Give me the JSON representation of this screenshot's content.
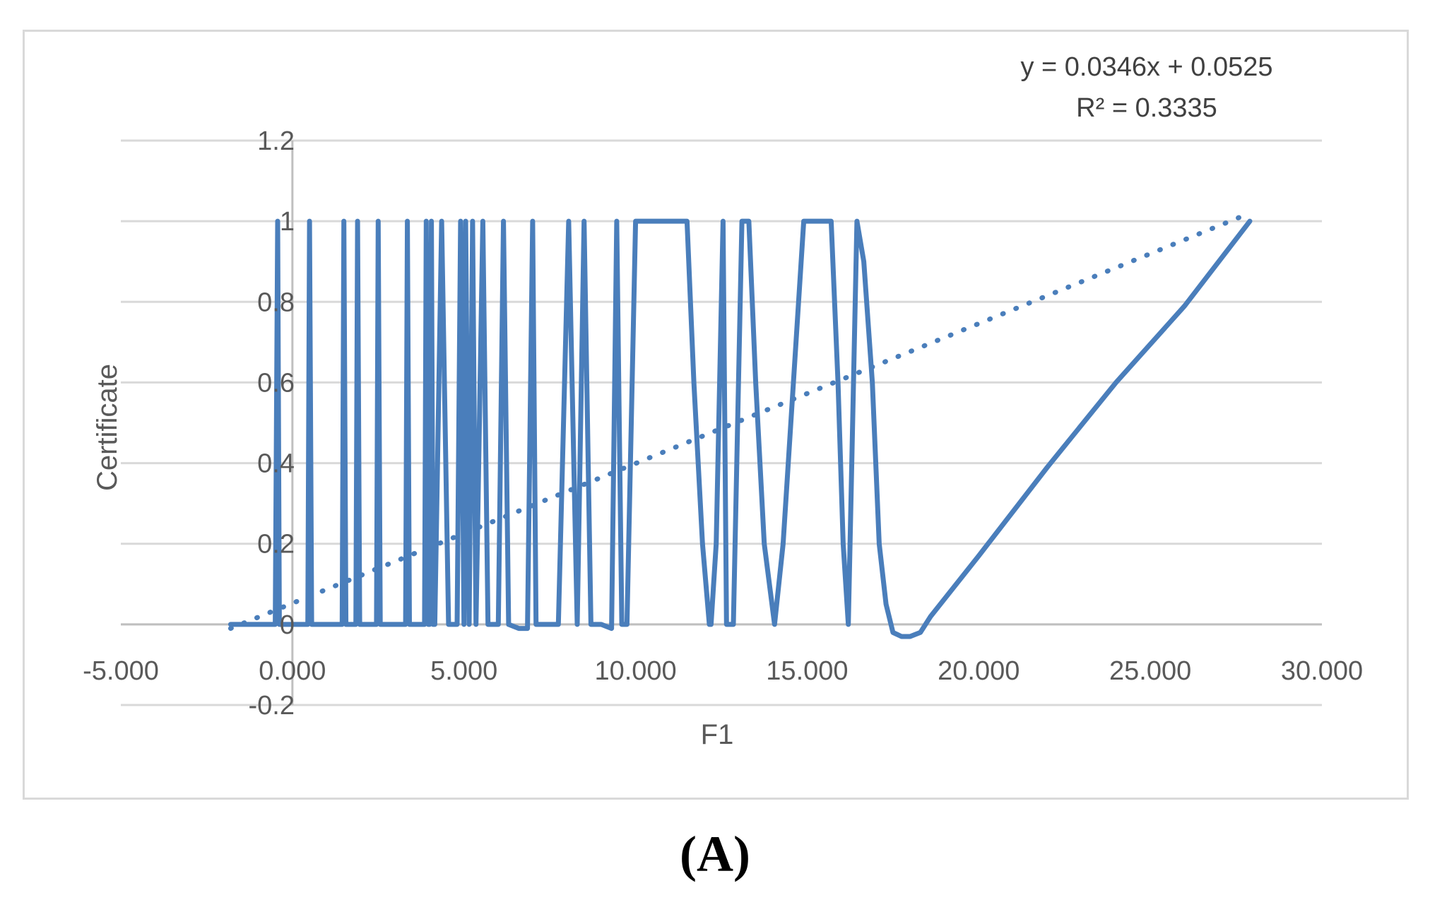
{
  "chart_data": {
    "type": "line",
    "title": "",
    "xlabel": "F1",
    "ylabel": "Certificate",
    "xlim": [
      -5000,
      30000
    ],
    "ylim": [
      -0.2,
      1.2
    ],
    "x_ticks": [
      "-5.000",
      "0.000",
      "5.000",
      "10.000",
      "15.000",
      "20.000",
      "25.000",
      "30.000"
    ],
    "y_ticks": [
      "-0.2",
      "0",
      "0.2",
      "0.4",
      "0.6",
      "0.8",
      "1",
      "1.2"
    ],
    "grid": true,
    "legend": "none",
    "colors": {
      "series": "#4a7ebb",
      "grid": "#d9d9d9",
      "axis": "#bfbfbf",
      "text": "#595959"
    },
    "trendline": {
      "type": "linear",
      "style": "dotted",
      "equation": "y = 0.0346x + 0.0525",
      "r_squared": "R² = 0.3335",
      "x": [
        -1800,
        27900
      ],
      "y": [
        -0.01,
        1.02
      ]
    },
    "series": [
      {
        "points": [
          [
            -1800,
            0
          ],
          [
            -500,
            0
          ],
          [
            -430,
            1.0
          ],
          [
            -380,
            0
          ],
          [
            450,
            0
          ],
          [
            500,
            1.0
          ],
          [
            560,
            0
          ],
          [
            1450,
            0
          ],
          [
            1500,
            1.0
          ],
          [
            1560,
            0
          ],
          [
            1850,
            0
          ],
          [
            1900,
            1.0
          ],
          [
            1960,
            0
          ],
          [
            2450,
            0
          ],
          [
            2500,
            1.0
          ],
          [
            2560,
            0
          ],
          [
            3300,
            0
          ],
          [
            3350,
            1.0
          ],
          [
            3410,
            0
          ],
          [
            3850,
            0
          ],
          [
            3900,
            1.0
          ],
          [
            3960,
            0
          ],
          [
            4000,
            0
          ],
          [
            4050,
            1.0
          ],
          [
            4100,
            0
          ],
          [
            4150,
            0
          ],
          [
            4350,
            1.0
          ],
          [
            4550,
            0
          ],
          [
            4800,
            0
          ],
          [
            4900,
            1.0
          ],
          [
            5000,
            0
          ],
          [
            5050,
            1.0
          ],
          [
            5150,
            0
          ],
          [
            5250,
            1.0
          ],
          [
            5350,
            0
          ],
          [
            5550,
            1.0
          ],
          [
            5700,
            0
          ],
          [
            5850,
            0
          ],
          [
            6000,
            0
          ],
          [
            6150,
            1.0
          ],
          [
            6300,
            0
          ],
          [
            6600,
            -0.01
          ],
          [
            6850,
            -0.01
          ],
          [
            7000,
            1.0
          ],
          [
            7100,
            0
          ],
          [
            7550,
            0
          ],
          [
            7750,
            0
          ],
          [
            8050,
            1.0
          ],
          [
            8300,
            0
          ],
          [
            8500,
            1.0
          ],
          [
            8700,
            0
          ],
          [
            9000,
            0
          ],
          [
            9300,
            -0.01
          ],
          [
            9450,
            1.0
          ],
          [
            9600,
            0
          ],
          [
            9750,
            0
          ],
          [
            10000,
            1.0
          ],
          [
            11000,
            1.0
          ],
          [
            11500,
            1.0
          ],
          [
            11700,
            0.6
          ],
          [
            11950,
            0.2
          ],
          [
            12150,
            0
          ],
          [
            12200,
            0
          ],
          [
            12350,
            0.2
          ],
          [
            12550,
            1.0
          ],
          [
            12650,
            0
          ],
          [
            12850,
            0
          ],
          [
            13100,
            1.0
          ],
          [
            13300,
            1.0
          ],
          [
            13500,
            0.6
          ],
          [
            13750,
            0.2
          ],
          [
            14050,
            0
          ],
          [
            14300,
            0.2
          ],
          [
            14600,
            0.6
          ],
          [
            14900,
            1.0
          ],
          [
            15250,
            1.0
          ],
          [
            15400,
            1.0
          ],
          [
            15700,
            1.0
          ],
          [
            15900,
            0.6
          ],
          [
            16050,
            0.2
          ],
          [
            16200,
            0
          ],
          [
            16300,
            0.4
          ],
          [
            16450,
            1.0
          ],
          [
            16650,
            0.9
          ],
          [
            16900,
            0.6
          ],
          [
            17100,
            0.2
          ],
          [
            17300,
            0.05
          ],
          [
            17500,
            -0.02
          ],
          [
            17750,
            -0.03
          ],
          [
            18000,
            -0.03
          ],
          [
            18300,
            -0.02
          ],
          [
            18600,
            0.02
          ],
          [
            20000,
            0.17
          ],
          [
            22000,
            0.39
          ],
          [
            24000,
            0.6
          ],
          [
            26000,
            0.79
          ],
          [
            27900,
            1.0
          ]
        ]
      }
    ]
  },
  "panel_label": "(A)"
}
